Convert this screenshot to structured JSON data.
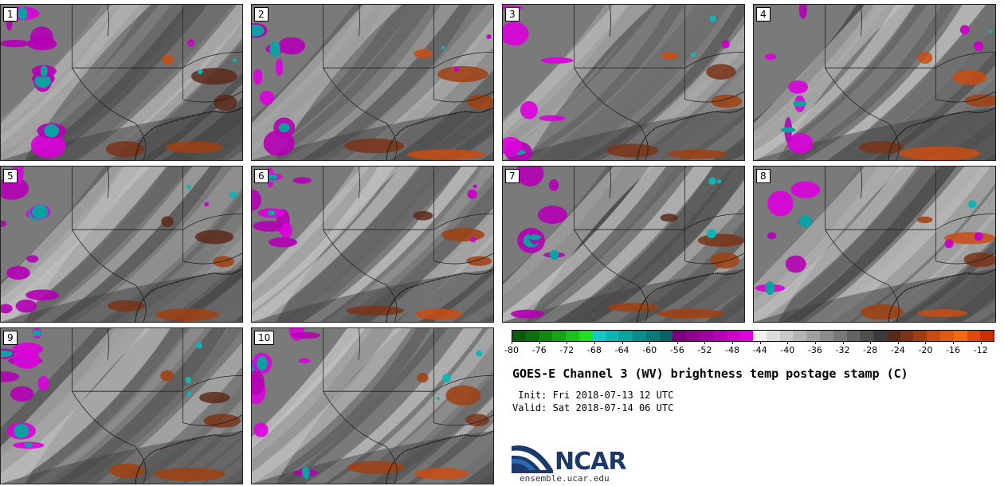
{
  "panels": [
    {
      "label": "1"
    },
    {
      "label": "2"
    },
    {
      "label": "3"
    },
    {
      "label": "4"
    },
    {
      "label": "5"
    },
    {
      "label": "6"
    },
    {
      "label": "7"
    },
    {
      "label": "8"
    },
    {
      "label": "9"
    },
    {
      "label": "10"
    }
  ],
  "colorbar": {
    "ticks": [
      "-80",
      "-76",
      "-72",
      "-68",
      "-64",
      "-60",
      "-56",
      "-52",
      "-48",
      "-44",
      "-40",
      "-36",
      "-32",
      "-28",
      "-24",
      "-20",
      "-16",
      "-12"
    ],
    "tick_values": [
      -80,
      -76,
      -72,
      -68,
      -64,
      -60,
      -56,
      -52,
      -48,
      -44,
      -40,
      -36,
      -32,
      -28,
      -24,
      -20,
      -16,
      -12
    ],
    "range": [
      -80,
      -10
    ],
    "colors": [
      "#0a5a0a",
      "#0e6e0e",
      "#128a12",
      "#16a316",
      "#1cc11c",
      "#22dd22",
      "#14c8c8",
      "#10b4b4",
      "#0da0a0",
      "#0a8c8c",
      "#087878",
      "#066464",
      "#7a007a",
      "#8c008c",
      "#a000a0",
      "#b400b4",
      "#c800c8",
      "#dc00dc",
      "#f0f0f0",
      "#dcdcdc",
      "#c8c8c8",
      "#b4b4b4",
      "#a0a0a0",
      "#8c8c8c",
      "#787878",
      "#646464",
      "#505050",
      "#3c3c3c",
      "#5a2a1a",
      "#7a3418",
      "#a04010",
      "#c84c10",
      "#e05a10",
      "#f06a10",
      "#e04a08",
      "#c83000"
    ]
  },
  "title": "GOES-E Channel 3 (WV) brightness temp postage stamp (C)",
  "init": " Init: Fri 2018-07-13 12 UTC",
  "valid": "Valid: Sat 2018-07-14 06 UTC",
  "logo": {
    "text": "NCAR",
    "colors": {
      "brand": "#1b3a6b",
      "swoosh": "#2a6ab0"
    }
  },
  "url": "ensemble.ucar.edu"
}
